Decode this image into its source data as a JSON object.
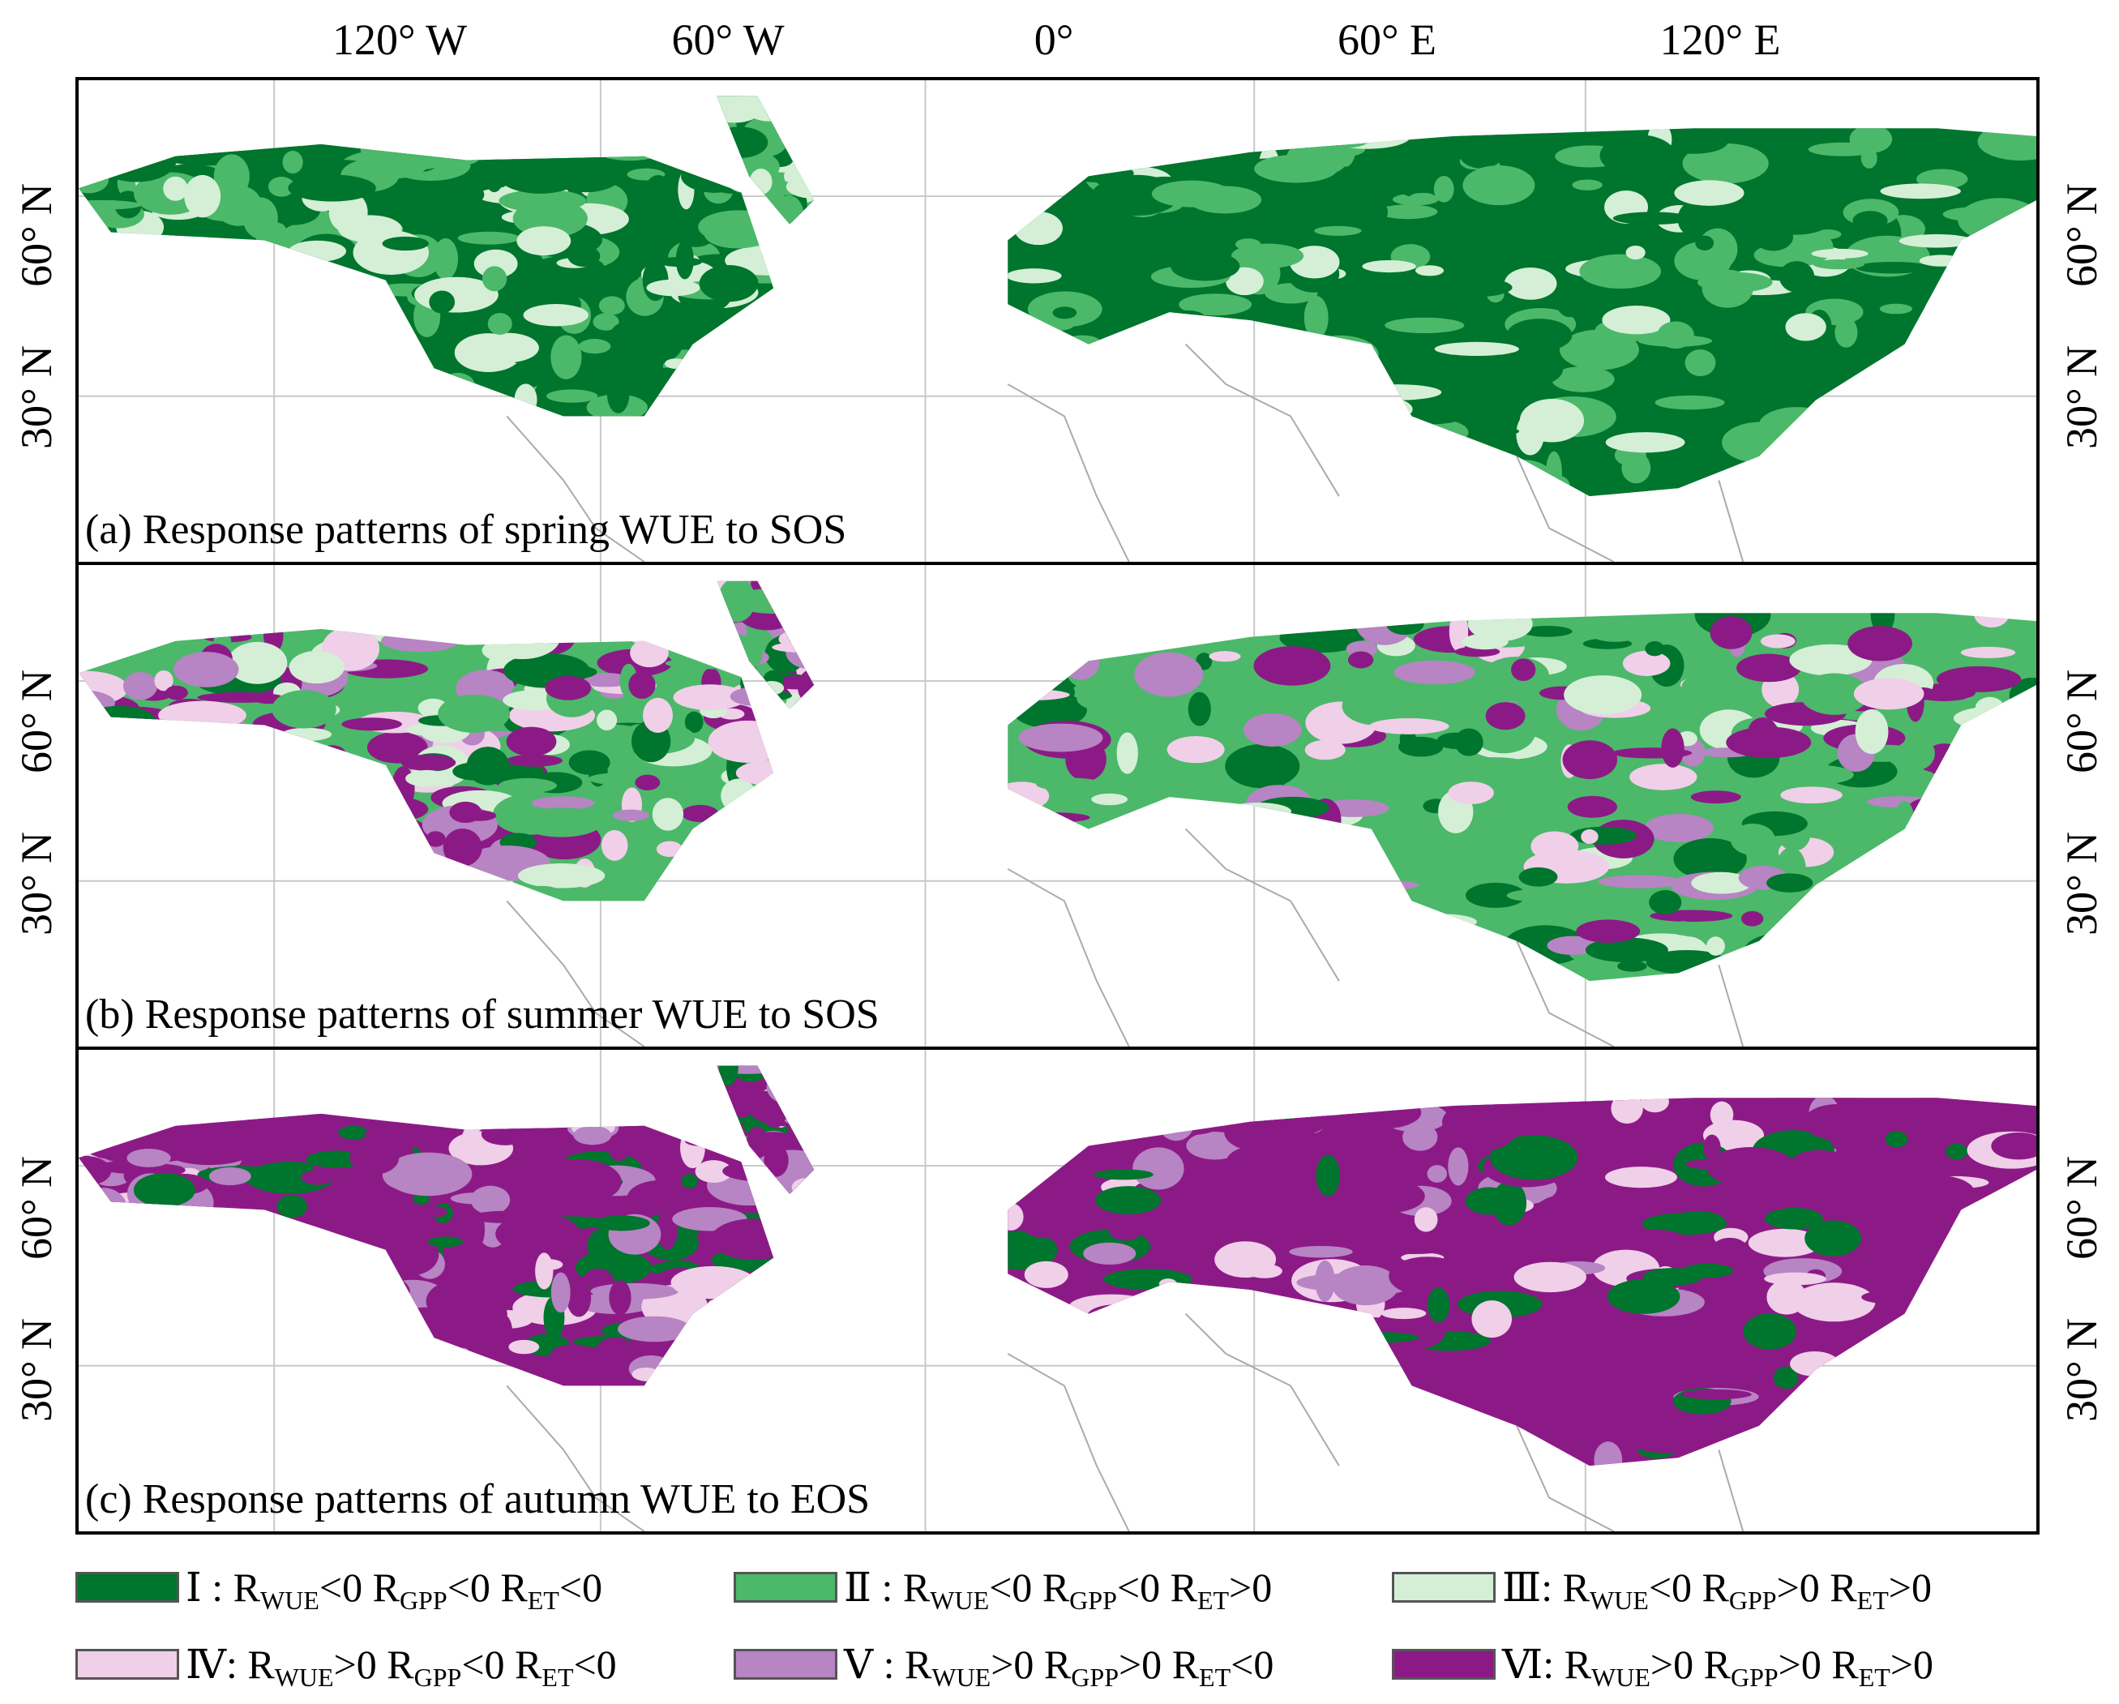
{
  "longitude_labels": [
    "120° W",
    "60° W",
    "0°",
    "60° E",
    "120° E"
  ],
  "latitude_labels": [
    "60° N",
    "30° N"
  ],
  "panels": [
    {
      "title": "(a) Response patterns of spring WUE to SOS",
      "pattern": "green"
    },
    {
      "title": "(b) Response patterns of summer WUE to SOS",
      "pattern": "mixed"
    },
    {
      "title": "(c) Response patterns of autumn WUE to EOS",
      "pattern": "purple"
    }
  ],
  "legend": [
    {
      "numeral": "Ⅰ",
      "sep": " : ",
      "color": "#00752d",
      "conditions": [
        [
          "R",
          "WUE",
          "<0"
        ],
        [
          "R",
          "GPP",
          "<0"
        ],
        [
          "R",
          "ET",
          "<0"
        ]
      ]
    },
    {
      "numeral": "Ⅱ",
      "sep": " : ",
      "color": "#4cb86a",
      "conditions": [
        [
          "R",
          "WUE",
          "<0"
        ],
        [
          "R",
          "GPP",
          "<0"
        ],
        [
          "R",
          "ET",
          ">0"
        ]
      ]
    },
    {
      "numeral": "Ⅲ",
      "sep": ": ",
      "color": "#d4efd6",
      "conditions": [
        [
          "R",
          "WUE",
          "<0"
        ],
        [
          "R",
          "GPP",
          ">0"
        ],
        [
          "R",
          "ET",
          ">0"
        ]
      ]
    },
    {
      "numeral": "Ⅳ",
      "sep": ": ",
      "color": "#f0cfe8",
      "conditions": [
        [
          "R",
          "WUE",
          ">0"
        ],
        [
          "R",
          "GPP",
          "<0"
        ],
        [
          "R",
          "ET",
          "<0"
        ]
      ]
    },
    {
      "numeral": "Ⅴ",
      "sep": " : ",
      "color": "#b784c4",
      "conditions": [
        [
          "R",
          "WUE",
          ">0"
        ],
        [
          "R",
          "GPP",
          ">0"
        ],
        [
          "R",
          "ET",
          "<0"
        ]
      ]
    },
    {
      "numeral": "Ⅵ",
      "sep": ": ",
      "color": "#8c1a86",
      "conditions": [
        [
          "R",
          "WUE",
          ">0"
        ],
        [
          "R",
          "GPP",
          ">0"
        ],
        [
          "R",
          "ET",
          ">0"
        ]
      ]
    }
  ]
}
